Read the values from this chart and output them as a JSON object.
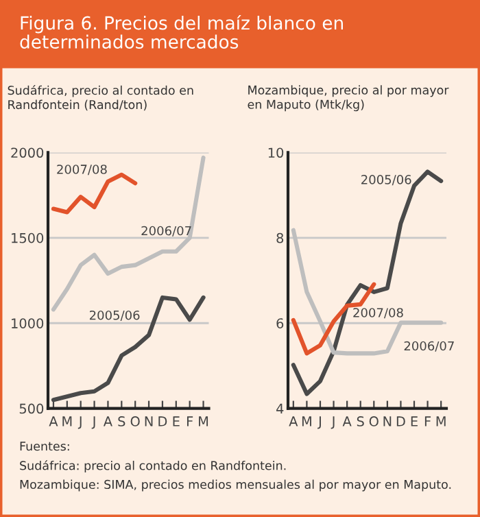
{
  "chart_data": [
    {
      "type": "line",
      "title": "Figura 6. Precios del maíz blanco en determinados mercados",
      "subtitle": "Sudáfrica, precio al contado en Randfontein (Rand/ton)",
      "categories": [
        "A",
        "M",
        "J",
        "J",
        "A",
        "S",
        "O",
        "N",
        "D",
        "E",
        "F",
        "M"
      ],
      "series": [
        {
          "name": "2007/08",
          "color": "#e2532b",
          "values": [
            1670,
            1650,
            1740,
            1680,
            1830,
            1870,
            1820,
            null,
            null,
            null,
            null,
            null
          ]
        },
        {
          "name": "2006/07",
          "color": "#bebebe",
          "values": [
            1080,
            1200,
            1340,
            1400,
            1290,
            1330,
            1340,
            1380,
            1420,
            1420,
            1500,
            1970
          ]
        },
        {
          "name": "2005/06",
          "color": "#4a4a4a",
          "values": [
            550,
            570,
            590,
            600,
            650,
            810,
            860,
            930,
            1150,
            1140,
            1020,
            1150
          ]
        }
      ],
      "ylim": [
        500,
        2000
      ],
      "yticks": [
        500,
        1000,
        1500,
        2000
      ],
      "grid": "y",
      "legend": false,
      "annotations": [
        "Fuentes:",
        "Sudáfrica: precio al contado en Randfontein.",
        "Mozambique: SIMA, precios medios mensuales al por mayor en Maputo."
      ]
    },
    {
      "type": "line",
      "subtitle": "Mozambique, precio al por mayor en Maputo (Mtk/kg)",
      "categories": [
        "A",
        "M",
        "J",
        "J",
        "A",
        "S",
        "O",
        "N",
        "D",
        "E",
        "F",
        "M"
      ],
      "series": [
        {
          "name": "2005/06",
          "color": "#4a4a4a",
          "values": [
            5.02,
            4.34,
            4.64,
            5.34,
            6.43,
            6.89,
            6.73,
            6.82,
            8.34,
            9.22,
            9.55,
            9.33
          ]
        },
        {
          "name": "2006/07",
          "color": "#bebebe",
          "values": [
            8.18,
            6.73,
            6.04,
            5.31,
            5.29,
            5.29,
            5.29,
            5.34,
            6.01,
            6.01,
            6.01,
            6.01
          ]
        },
        {
          "name": "2007/08",
          "color": "#e2532b",
          "values": [
            6.07,
            5.29,
            5.48,
            6.04,
            6.41,
            6.44,
            6.91,
            null,
            null,
            null,
            null,
            null
          ]
        }
      ],
      "ylim": [
        4,
        10
      ],
      "yticks": [
        4,
        6,
        8,
        10
      ],
      "grid": "y",
      "legend": false
    }
  ]
}
